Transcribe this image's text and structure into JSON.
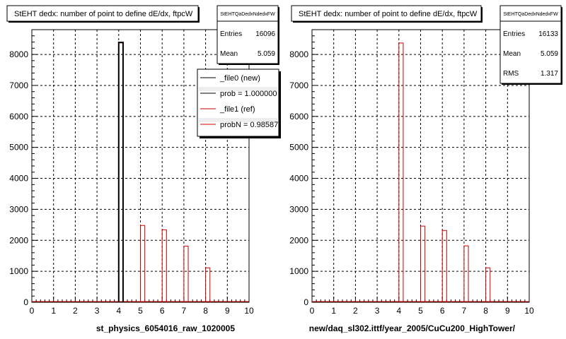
{
  "chart_data": [
    {
      "type": "bar",
      "title": "StEHT dedx: number of point to define dE/dx, ftpcW",
      "xlabel": "st_physics_6054016_raw_1020005",
      "xlim": [
        0,
        10
      ],
      "ylim": [
        0,
        8800
      ],
      "x_ticks": [
        "0",
        "1",
        "2",
        "3",
        "4",
        "5",
        "6",
        "7",
        "8",
        "9",
        "10"
      ],
      "y_ticks": [
        "0",
        "1000",
        "2000",
        "3000",
        "4000",
        "5000",
        "6000",
        "7000",
        "8000"
      ],
      "grid": true,
      "stats": {
        "name": "StEHTQaDedxNdedxFW",
        "rows": [
          {
            "label": "Entries",
            "value": "16096"
          },
          {
            "label": "Mean",
            "value": "5.059"
          }
        ]
      },
      "legend": {
        "position": "top-right",
        "entries": [
          {
            "label": "_file0 (new)",
            "color": "#000000"
          },
          {
            "label": "prob = 1.000000",
            "color": "#000000"
          },
          {
            "label": "_file1 (ref)",
            "color": "#cc0000"
          },
          {
            "label": "probN = 0.985871",
            "color": "#cc0000"
          }
        ]
      },
      "series": [
        {
          "color": "#cc0000",
          "bins": [
            {
              "x": 4.1,
              "value": 8370
            },
            {
              "x": 5.1,
              "value": 2480
            },
            {
              "x": 6.1,
              "value": 2340
            },
            {
              "x": 7.1,
              "value": 1810
            },
            {
              "x": 8.1,
              "value": 1110
            }
          ]
        },
        {
          "color": "#000000",
          "bins": [
            {
              "x": 4.1,
              "value": 8390
            }
          ]
        }
      ]
    },
    {
      "type": "bar",
      "title": "StEHT dedx: number of point to define dE/dx, ftpcW",
      "xlabel": "new/daq_sl302.ittf/year_2005/CuCu200_HighTower/",
      "xlim": [
        0,
        10
      ],
      "ylim": [
        0,
        8800
      ],
      "x_ticks": [
        "0",
        "1",
        "2",
        "3",
        "4",
        "5",
        "6",
        "7",
        "8",
        "9",
        "10"
      ],
      "y_ticks": [
        "0",
        "1000",
        "2000",
        "3000",
        "4000",
        "5000",
        "6000",
        "7000",
        "8000"
      ],
      "grid": true,
      "stats": {
        "name": "StEHTQaDedxNdedxFW",
        "rows": [
          {
            "label": "Entries",
            "value": "16133"
          },
          {
            "label": "Mean",
            "value": "5.059"
          },
          {
            "label": "RMS",
            "value": "1.317"
          }
        ]
      },
      "series": [
        {
          "color": "#cc0000",
          "bins": [
            {
              "x": 4.1,
              "value": 8370
            },
            {
              "x": 5.1,
              "value": 2460
            },
            {
              "x": 6.1,
              "value": 2320
            },
            {
              "x": 7.1,
              "value": 1820
            },
            {
              "x": 8.1,
              "value": 1110
            }
          ]
        }
      ]
    }
  ]
}
